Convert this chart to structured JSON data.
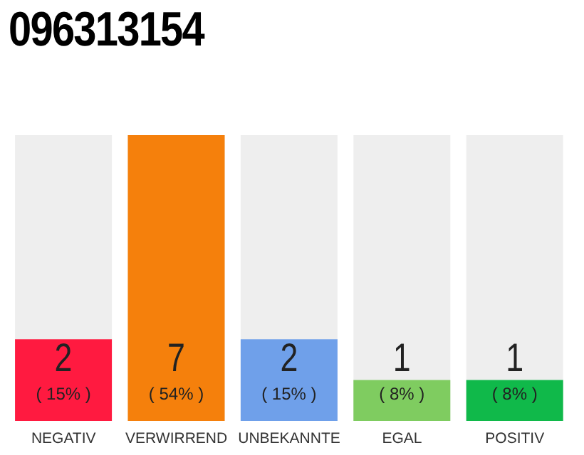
{
  "chart_data": {
    "type": "bar",
    "title": "096313154",
    "categories": [
      "NEGATIV",
      "VERWIRREND",
      "UNBEKANNTE",
      "EGAL",
      "POSITIV"
    ],
    "values": [
      2,
      7,
      2,
      1,
      1
    ],
    "colors": [
      "#ff1a40",
      "#f5800c",
      "#6fa0ea",
      "#7fcc60",
      "#10b94a"
    ],
    "ylim": [
      0,
      7
    ],
    "tick_labels": "x",
    "data_labels": true,
    "grid": false,
    "legend": false,
    "annotations": [
      "( 15% )",
      "( 54% )",
      "( 15% )",
      "( 8% )",
      "( 8% )"
    ]
  }
}
